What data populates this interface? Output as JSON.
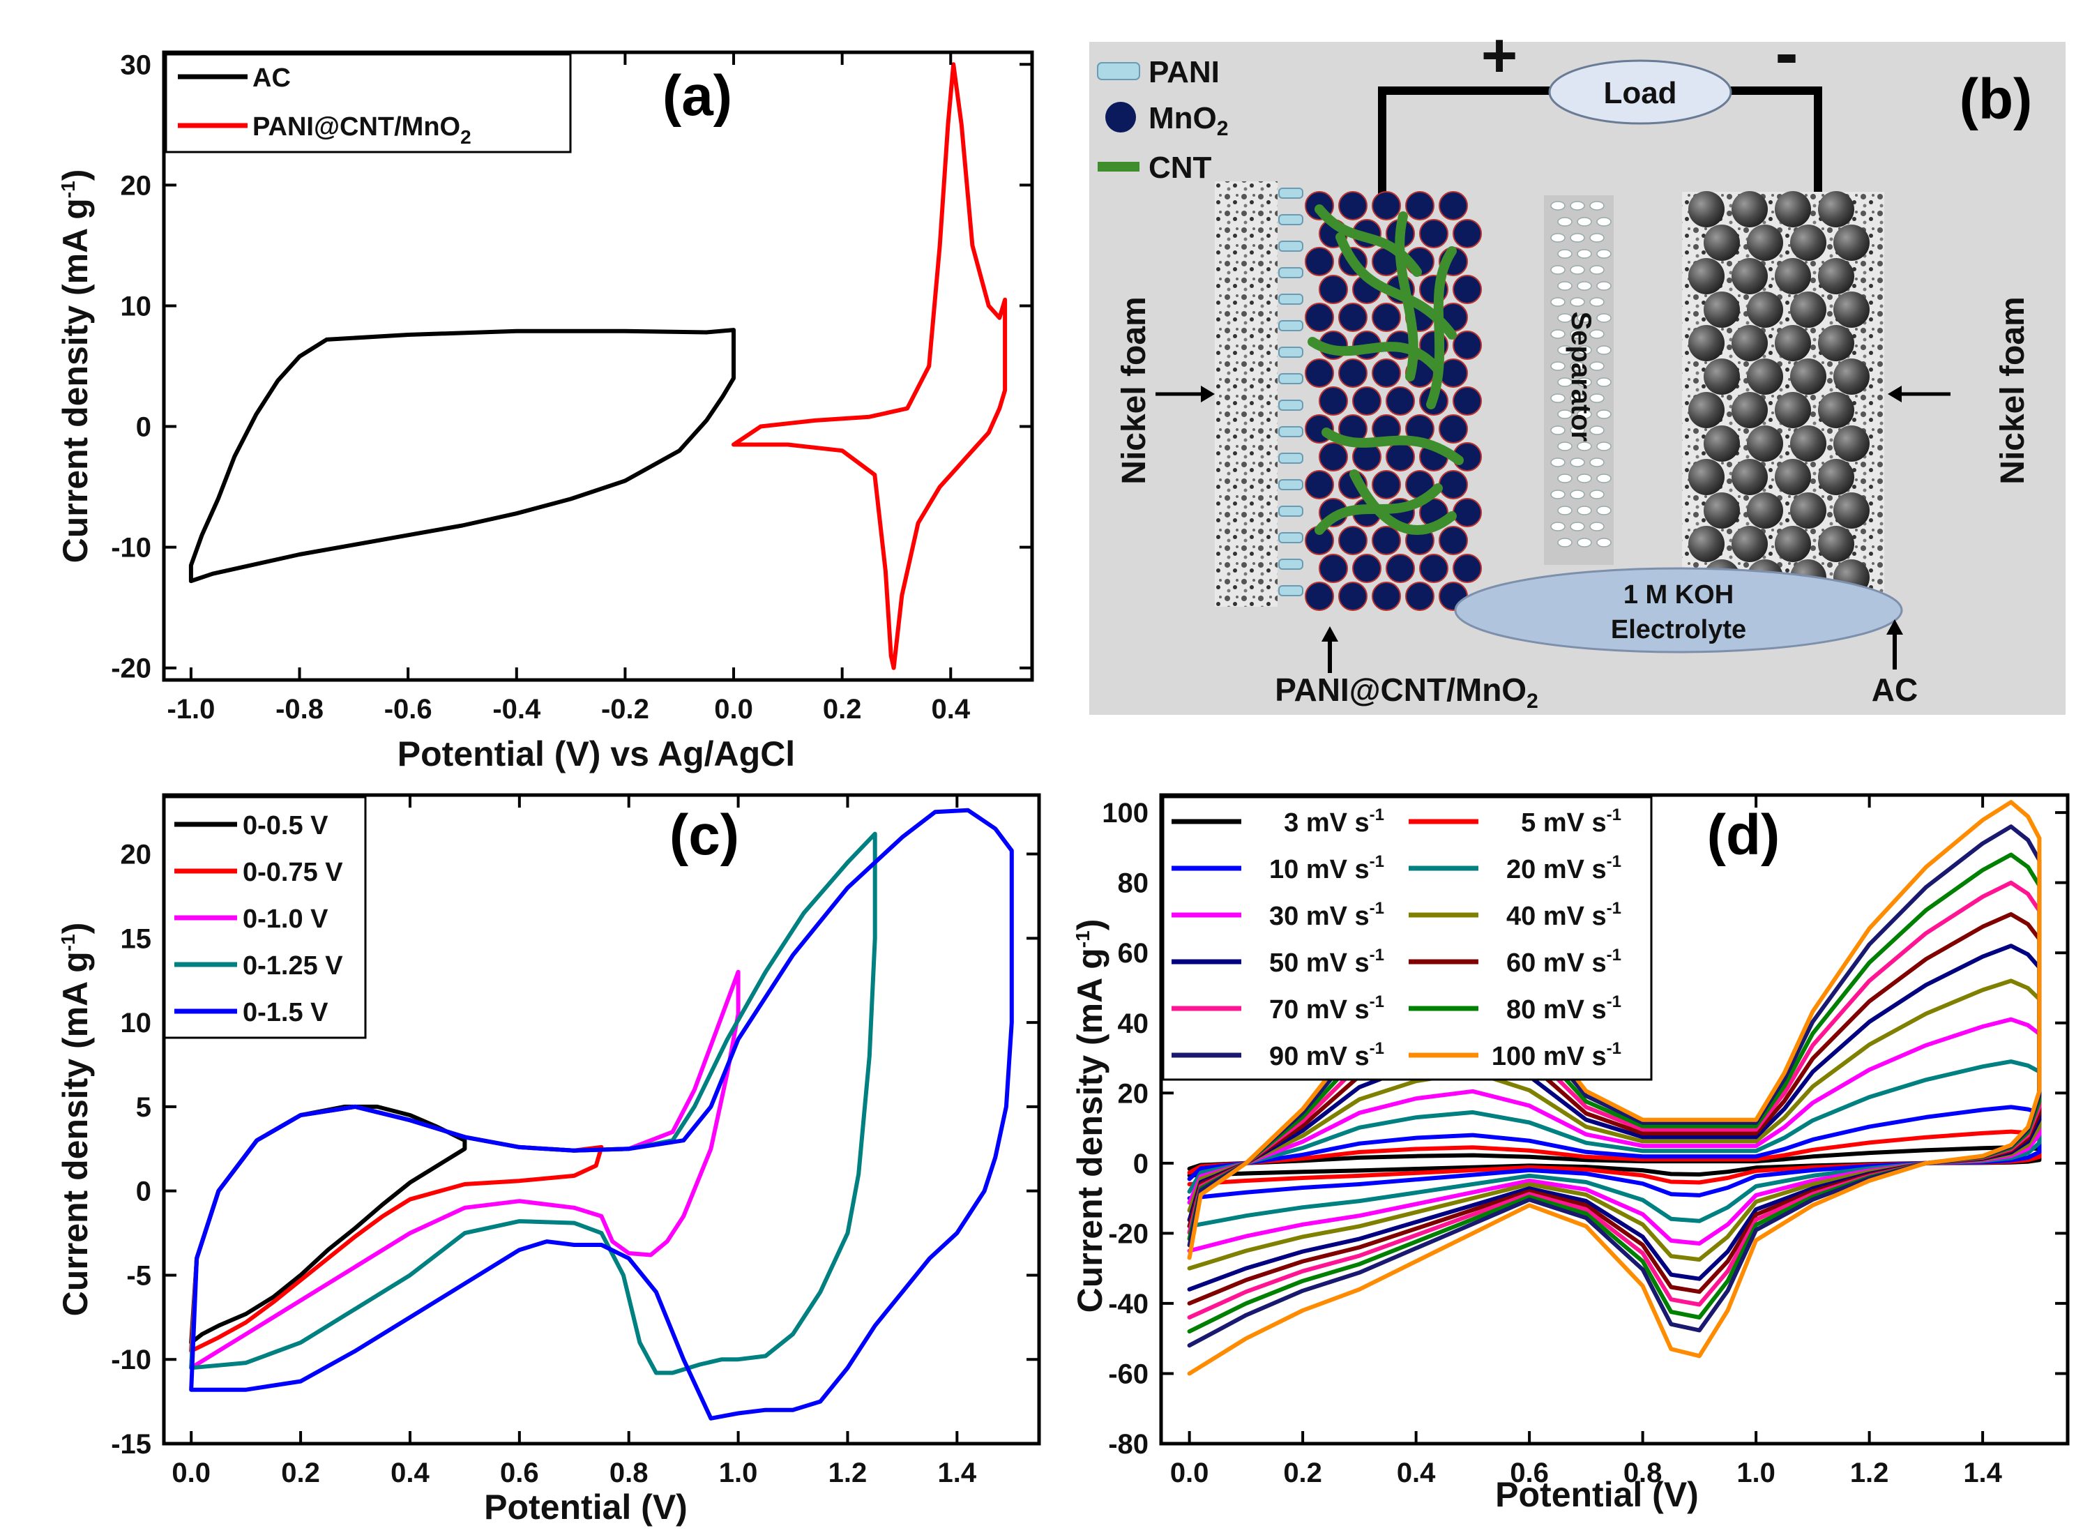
{
  "chart_data": [
    {
      "panel": "(a)",
      "type": "line",
      "xlabel": "Potential (V) vs Ag/AgCl",
      "ylabel": "Current density (mA g",
      "ylabel_sup": "-1",
      "ylabel_end": ")",
      "xlim": [
        -1.05,
        0.55
      ],
      "ylim": [
        -21,
        31
      ],
      "xticks": [
        "-1.0",
        "-0.8",
        "-0.6",
        "-0.4",
        "-0.2",
        "0.0",
        "0.2",
        "0.4"
      ],
      "xtick_values": [
        -1.0,
        -0.8,
        -0.6,
        -0.4,
        -0.2,
        0.0,
        0.2,
        0.4
      ],
      "yticks": [
        "-20",
        "-10",
        "0",
        "10",
        "20",
        "30"
      ],
      "ytick_values": [
        -20,
        -10,
        0,
        10,
        20,
        30
      ],
      "series": [
        {
          "name": "AC",
          "name_sub": "",
          "color": "#000000",
          "x": [
            -1.0,
            -1.0,
            -0.98,
            -0.95,
            -0.92,
            -0.88,
            -0.84,
            -0.8,
            -0.75,
            -0.6,
            -0.4,
            -0.2,
            -0.05,
            0.0,
            0.0,
            -0.02,
            -0.05,
            -0.1,
            -0.2,
            -0.3,
            -0.4,
            -0.5,
            -0.6,
            -0.7,
            -0.8,
            -0.9,
            -0.96,
            -1.0
          ],
          "y": [
            -12.8,
            -11.5,
            -9.0,
            -6.0,
            -2.5,
            1.0,
            3.8,
            5.8,
            7.2,
            7.6,
            7.9,
            7.9,
            7.8,
            8.0,
            4.0,
            2.5,
            0.5,
            -2.0,
            -4.5,
            -6.0,
            -7.2,
            -8.2,
            -9.0,
            -9.8,
            -10.6,
            -11.6,
            -12.2,
            -12.8
          ]
        },
        {
          "name": "PANI@CNT/MnO",
          "name_sub": "2",
          "color": "#ff0000",
          "x": [
            0.0,
            0.05,
            0.15,
            0.25,
            0.32,
            0.36,
            0.38,
            0.395,
            0.405,
            0.42,
            0.44,
            0.47,
            0.49,
            0.5,
            0.5,
            0.49,
            0.47,
            0.43,
            0.41,
            0.38,
            0.34,
            0.31,
            0.295,
            0.29,
            0.28,
            0.26,
            0.2,
            0.1,
            0.0
          ],
          "y": [
            -1.5,
            0.0,
            0.5,
            0.8,
            1.5,
            5.0,
            15.0,
            25.0,
            30.0,
            25.0,
            15.0,
            10.0,
            9.0,
            10.5,
            3.0,
            1.5,
            -0.5,
            -2.5,
            -3.5,
            -5.0,
            -8.0,
            -14.0,
            -20.0,
            -19.0,
            -12.0,
            -4.0,
            -2.0,
            -1.5,
            -1.5
          ]
        }
      ]
    },
    {
      "panel": "(c)",
      "type": "line",
      "xlabel": "Potential (V)",
      "ylabel": "Current density (mA g",
      "ylabel_sup": "-1",
      "ylabel_end": ")",
      "xlim": [
        -0.05,
        1.55
      ],
      "ylim": [
        -15,
        23.5
      ],
      "xticks": [
        "0.0",
        "0.2",
        "0.4",
        "0.6",
        "0.8",
        "1.0",
        "1.2",
        "1.4"
      ],
      "xtick_values": [
        0.0,
        0.2,
        0.4,
        0.6,
        0.8,
        1.0,
        1.2,
        1.4
      ],
      "yticks": [
        "-15",
        "-10",
        "-5",
        "0",
        "5",
        "10",
        "15",
        "20"
      ],
      "ytick_values": [
        -15,
        -10,
        -5,
        0,
        5,
        10,
        15,
        20
      ],
      "series": [
        {
          "name": "0-0.5 V",
          "color": "#000000",
          "x": [
            0.0,
            0.01,
            0.05,
            0.12,
            0.2,
            0.28,
            0.34,
            0.4,
            0.45,
            0.5,
            0.5,
            0.45,
            0.4,
            0.35,
            0.3,
            0.25,
            0.2,
            0.15,
            0.1,
            0.05,
            0.02,
            0.0
          ],
          "y": [
            -9.0,
            -4.0,
            0.0,
            3.0,
            4.5,
            5.0,
            5.0,
            4.5,
            3.8,
            3.0,
            2.5,
            1.5,
            0.5,
            -0.8,
            -2.2,
            -3.5,
            -5.0,
            -6.3,
            -7.3,
            -8.0,
            -8.5,
            -9.0
          ]
        },
        {
          "name": "0-0.75 V",
          "color": "#ff0000",
          "x": [
            0.0,
            0.01,
            0.05,
            0.12,
            0.2,
            0.3,
            0.4,
            0.5,
            0.6,
            0.7,
            0.75,
            0.74,
            0.7,
            0.6,
            0.5,
            0.4,
            0.35,
            0.3,
            0.25,
            0.2,
            0.15,
            0.1,
            0.05,
            0.0
          ],
          "y": [
            -9.5,
            -4.0,
            0.0,
            3.0,
            4.5,
            5.0,
            4.2,
            3.2,
            2.6,
            2.4,
            2.6,
            1.5,
            0.9,
            0.6,
            0.4,
            -0.5,
            -1.5,
            -2.7,
            -4.0,
            -5.3,
            -6.6,
            -7.8,
            -8.7,
            -9.5
          ]
        },
        {
          "name": "0-1.0 V",
          "color": "#ff00ff",
          "x": [
            0.0,
            0.01,
            0.05,
            0.12,
            0.2,
            0.3,
            0.4,
            0.5,
            0.6,
            0.7,
            0.8,
            0.88,
            0.92,
            0.96,
            1.0,
            1.0,
            0.98,
            0.95,
            0.9,
            0.87,
            0.84,
            0.8,
            0.77,
            0.75,
            0.7,
            0.6,
            0.5,
            0.4,
            0.3,
            0.2,
            0.1,
            0.05,
            0.0
          ],
          "y": [
            -10.5,
            -4.0,
            0.0,
            3.0,
            4.5,
            5.0,
            4.2,
            3.2,
            2.6,
            2.4,
            2.5,
            3.5,
            6.0,
            9.5,
            13.0,
            10.5,
            7.0,
            2.5,
            -1.5,
            -3.0,
            -3.8,
            -3.7,
            -3.0,
            -1.5,
            -1.0,
            -0.6,
            -1.0,
            -2.5,
            -4.5,
            -6.5,
            -8.5,
            -9.5,
            -10.5
          ]
        },
        {
          "name": "0-1.25 V",
          "color": "#008080",
          "x": [
            0.0,
            0.01,
            0.05,
            0.12,
            0.2,
            0.3,
            0.4,
            0.5,
            0.6,
            0.7,
            0.8,
            0.88,
            0.92,
            0.98,
            1.05,
            1.12,
            1.2,
            1.25,
            1.25,
            1.24,
            1.22,
            1.2,
            1.15,
            1.1,
            1.05,
            1.0,
            0.97,
            0.93,
            0.88,
            0.85,
            0.82,
            0.79,
            0.75,
            0.7,
            0.6,
            0.5,
            0.4,
            0.3,
            0.2,
            0.1,
            0.0
          ],
          "y": [
            -10.5,
            -4.0,
            0.0,
            3.0,
            4.5,
            5.0,
            4.2,
            3.2,
            2.6,
            2.4,
            2.5,
            3.0,
            5.0,
            9.0,
            13.0,
            16.5,
            19.5,
            21.2,
            15.0,
            8.0,
            1.0,
            -2.5,
            -6.0,
            -8.5,
            -9.8,
            -10.0,
            -10.0,
            -10.3,
            -10.8,
            -10.8,
            -9.0,
            -5.0,
            -2.5,
            -1.9,
            -1.8,
            -2.5,
            -5.0,
            -7.0,
            -9.0,
            -10.2,
            -10.5
          ]
        },
        {
          "name": "0-1.5 V",
          "color": "#0000ff",
          "x": [
            0.0,
            0.01,
            0.05,
            0.12,
            0.2,
            0.3,
            0.4,
            0.5,
            0.6,
            0.7,
            0.8,
            0.9,
            0.95,
            1.0,
            1.1,
            1.2,
            1.3,
            1.36,
            1.42,
            1.47,
            1.5,
            1.5,
            1.49,
            1.47,
            1.45,
            1.4,
            1.35,
            1.3,
            1.25,
            1.2,
            1.15,
            1.1,
            1.05,
            1.0,
            0.95,
            0.9,
            0.85,
            0.8,
            0.75,
            0.7,
            0.65,
            0.6,
            0.5,
            0.4,
            0.3,
            0.2,
            0.1,
            0.0
          ],
          "y": [
            -11.8,
            -4.0,
            0.0,
            3.0,
            4.5,
            5.0,
            4.2,
            3.2,
            2.6,
            2.4,
            2.5,
            3.0,
            5.0,
            9.0,
            14.0,
            18.0,
            21.0,
            22.5,
            22.6,
            21.5,
            20.2,
            10.0,
            5.0,
            2.0,
            0.0,
            -2.5,
            -4.0,
            -6.0,
            -8.0,
            -10.5,
            -12.5,
            -13.0,
            -13.0,
            -13.2,
            -13.5,
            -10.0,
            -6.0,
            -4.0,
            -3.2,
            -3.2,
            -3.0,
            -3.5,
            -5.5,
            -7.5,
            -9.5,
            -11.3,
            -11.8,
            -11.8
          ]
        }
      ]
    },
    {
      "panel": "(d)",
      "type": "line",
      "xlabel": "Potential (V)",
      "ylabel": "Current density (mA g",
      "ylabel_sup": "-1",
      "ylabel_end": ")",
      "xlim": [
        -0.05,
        1.55
      ],
      "ylim": [
        -80,
        105
      ],
      "xticks": [
        "0.0",
        "0.2",
        "0.4",
        "0.6",
        "0.8",
        "1.0",
        "1.2",
        "1.4"
      ],
      "xtick_values": [
        0.0,
        0.2,
        0.4,
        0.6,
        0.8,
        1.0,
        1.2,
        1.4
      ],
      "yticks": [
        "-80",
        "-60",
        "-40",
        "-20",
        "0",
        "20",
        "40",
        "60",
        "80",
        "100"
      ],
      "ytick_values": [
        -80,
        -60,
        -40,
        -20,
        0,
        20,
        40,
        60,
        80,
        100
      ],
      "shape_x": [
        0.0,
        0.02,
        0.1,
        0.2,
        0.3,
        0.4,
        0.5,
        0.6,
        0.7,
        0.8,
        0.9,
        1.0,
        1.05,
        1.1,
        1.2,
        1.3,
        1.4,
        1.45,
        1.48,
        1.5,
        1.5,
        1.48,
        1.45,
        1.4,
        1.3,
        1.2,
        1.1,
        1.0,
        0.95,
        0.9,
        0.85,
        0.8,
        0.7,
        0.6,
        0.5,
        0.4,
        0.3,
        0.2,
        0.1,
        0.05,
        0.0
      ],
      "shape_top": [
        -0.6,
        -0.2,
        0.0,
        0.15,
        0.35,
        0.45,
        0.5,
        0.4,
        0.2,
        0.12,
        0.12,
        0.12,
        0.25,
        0.42,
        0.65,
        0.82,
        0.95,
        1.0,
        0.96,
        0.9,
        0.2,
        0.1,
        0.05,
        0.02,
        0.0,
        -0.05,
        -0.12,
        -0.22,
        -0.42,
        -0.55,
        -0.53,
        -0.35,
        -0.18,
        -0.12,
        -0.2,
        -0.28,
        -0.36,
        -0.42,
        -0.5,
        -0.55,
        -0.6
      ],
      "series": [
        {
          "name": "3 mV s",
          "name_sup": "-1",
          "color": "#000000",
          "peak": 4.5,
          "trough": 3.5
        },
        {
          "name": "5 mV s",
          "name_sup": "-1",
          "color": "#ff0000",
          "peak": 9,
          "trough": 6
        },
        {
          "name": "10 mV s",
          "name_sup": "-1",
          "color": "#0000ff",
          "peak": 16,
          "trough": 10
        },
        {
          "name": "20 mV s",
          "name_sup": "-1",
          "color": "#008080",
          "peak": 29,
          "trough": 18
        },
        {
          "name": "30 mV s",
          "name_sup": "-1",
          "color": "#ff00ff",
          "peak": 41,
          "trough": 25
        },
        {
          "name": "40 mV s",
          "name_sup": "-1",
          "color": "#808000",
          "peak": 52,
          "trough": 30
        },
        {
          "name": "50 mV s",
          "name_sup": "-1",
          "color": "#000080",
          "peak": 62,
          "trough": 36
        },
        {
          "name": "60 mV s",
          "name_sup": "-1",
          "color": "#800000",
          "peak": 71,
          "trough": 40
        },
        {
          "name": "70 mV s",
          "name_sup": "-1",
          "color": "#ff1493",
          "peak": 80,
          "trough": 44
        },
        {
          "name": "80 mV s",
          "name_sup": "-1",
          "color": "#008000",
          "peak": 88,
          "trough": 48
        },
        {
          "name": "90 mV s",
          "name_sup": "-1",
          "color": "#191970",
          "peak": 96,
          "trough": 52
        },
        {
          "name": "100 mV s",
          "name_sup": "-1",
          "color": "#ff8c00",
          "peak": 103,
          "trough": 60
        }
      ]
    }
  ],
  "schematic_b": {
    "panel": "(b)",
    "plus": "+",
    "minus": "-",
    "load": "Load",
    "legend_pani": "PANI",
    "legend_mno2": "MnO",
    "legend_mno2_sub": "2",
    "legend_cnt": "CNT",
    "nickel_foam_left": "Nickel foam",
    "nickel_foam_right": "Nickel foam",
    "separator": "Separator",
    "electrolyte_line1": "1 M KOH",
    "electrolyte_line2": "Electrolyte",
    "label_pani": "PANI@CNT/MnO",
    "label_pani_sub": "2",
    "label_ac": "AC",
    "colors": {
      "background": "#d9d9d9",
      "pani": "#add8e6",
      "mno2": "#0b1a5c",
      "cnt": "#3e8e2e",
      "ac": "#4a4a4a",
      "electrolyte": "#b0c4de",
      "separator": "#c8c8c8"
    }
  }
}
